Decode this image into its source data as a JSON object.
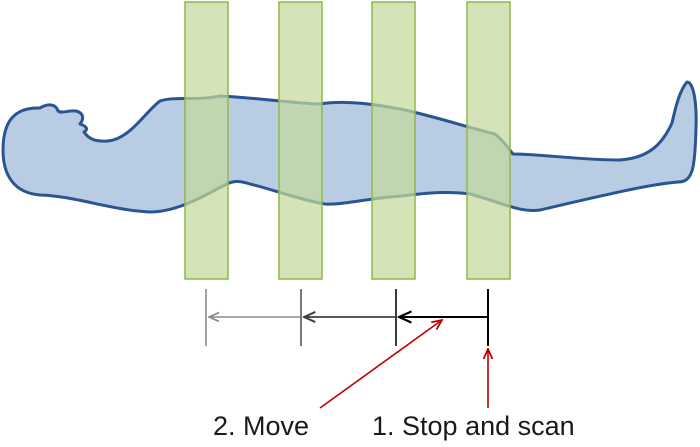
{
  "labels": {
    "move": "2. Move",
    "stop_and_scan": "1. Stop and scan"
  },
  "colors": {
    "body_fill": "#b8cce4",
    "body_stroke": "#2a5591",
    "scan_fill": "#c3d99b",
    "scan_stroke": "#8fb84a",
    "arrow_gray": "#8c8c8c",
    "arrow_dark": "#404040",
    "arrow_black": "#000000",
    "arrow_red": "#c00000"
  },
  "scan_window_count": 4
}
